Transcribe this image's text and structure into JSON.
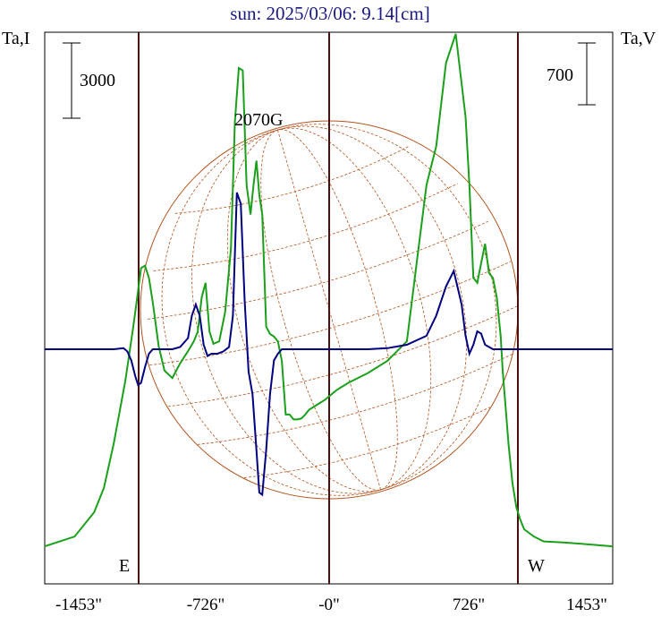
{
  "chart_data": {
    "type": "line",
    "title": "sun: 2025/03/06: 9.14[cm]",
    "left_axis_label": "Ta,I",
    "right_axis_label": "Ta,V",
    "left_scale_bar": "3000",
    "right_scale_bar": "700",
    "annotation": "2070G",
    "east_label": "E",
    "west_label": "W",
    "x_ticks": [
      "-1453\"",
      "-726\"",
      "-0\"",
      "726\"",
      "1453\""
    ],
    "xlim": [
      -1453,
      1453
    ],
    "grid": false,
    "series": [
      {
        "color": "#1aa01a",
        "x": [
          -1453,
          -1300,
          -1200,
          -1150,
          -1100,
          -1040,
          -1000,
          -980,
          -960,
          -940,
          -920,
          -900,
          -870,
          -840,
          -800,
          -760,
          -720,
          -690,
          -670,
          -650,
          -630,
          -610,
          -590,
          -560,
          -530,
          -500,
          -480,
          -460,
          -440,
          -420,
          -400,
          -385,
          -370,
          -355,
          -340,
          -320,
          -300,
          -280,
          -260,
          -240,
          -220,
          -200,
          -180,
          -160,
          -140,
          -120,
          -100,
          -60,
          -20,
          40,
          100,
          200,
          300,
          400,
          450,
          500,
          550,
          600,
          650,
          700,
          720,
          740,
          760,
          780,
          800,
          820,
          840,
          860,
          880,
          890,
          900,
          920,
          940,
          960,
          980,
          1000,
          1050,
          1100,
          1200,
          1300,
          1453
        ],
        "y": [
          20,
          40,
          90,
          140,
          230,
          360,
          470,
          530,
          590,
          595,
          570,
          520,
          430,
          380,
          365,
          395,
          420,
          440,
          460,
          530,
          560,
          460,
          435,
          440,
          500,
          630,
          890,
          1000,
          995,
          760,
          700,
          760,
          810,
          740,
          700,
          470,
          455,
          450,
          440,
          400,
          290,
          290,
          280,
          280,
          282,
          290,
          300,
          310,
          320,
          340,
          355,
          375,
          400,
          440,
          600,
          760,
          840,
          1010,
          1070,
          900,
          760,
          570,
          560,
          600,
          640,
          580,
          570,
          530,
          450,
          380,
          330,
          230,
          150,
          100,
          75,
          55,
          40,
          30,
          28,
          25,
          20
        ]
      },
      {
        "color": "#000080",
        "x": [
          -1453,
          -1100,
          -1050,
          -1030,
          -1010,
          -990,
          -975,
          -960,
          -940,
          -920,
          -900,
          -870,
          -840,
          -800,
          -760,
          -720,
          -700,
          -680,
          -660,
          -640,
          -620,
          -600,
          -570,
          -540,
          -510,
          -490,
          -470,
          -450,
          -430,
          -410,
          -390,
          -370,
          -355,
          -340,
          -320,
          -300,
          -280,
          -260,
          -240,
          -200,
          -120,
          -60,
          0,
          100,
          200,
          300,
          400,
          500,
          550,
          600,
          640,
          680,
          700,
          720,
          740,
          760,
          780,
          800,
          840,
          880,
          920,
          980,
          1100,
          1453
        ],
        "y": [
          0,
          0,
          5,
          -10,
          -50,
          -120,
          -160,
          -150,
          -80,
          -20,
          0,
          0,
          0,
          0,
          10,
          50,
          150,
          200,
          150,
          20,
          -30,
          -20,
          -20,
          -10,
          10,
          150,
          700,
          650,
          220,
          -100,
          -200,
          -450,
          -640,
          -650,
          -450,
          -200,
          -50,
          -20,
          0,
          0,
          0,
          0,
          0,
          0,
          0,
          5,
          20,
          60,
          150,
          280,
          350,
          200,
          60,
          -20,
          20,
          80,
          70,
          20,
          0,
          0,
          0,
          0,
          0,
          0
        ]
      }
    ]
  }
}
